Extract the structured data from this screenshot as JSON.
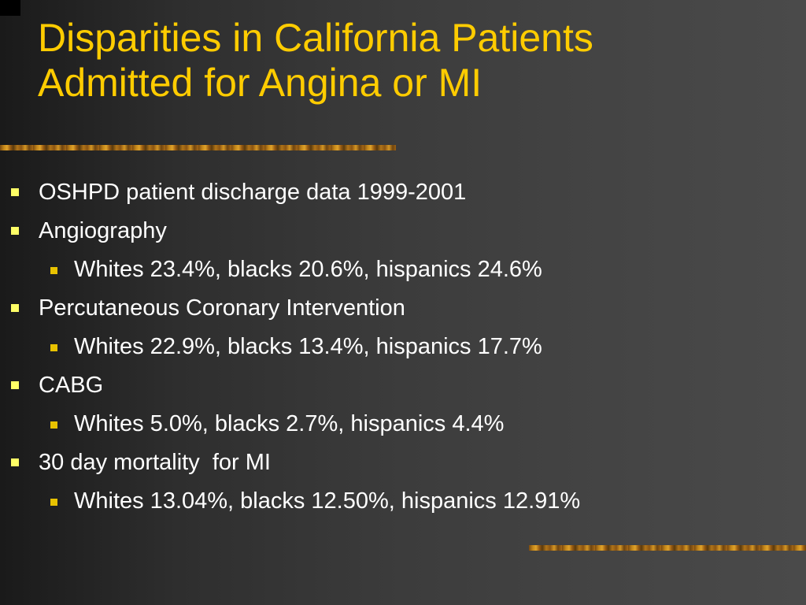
{
  "slide": {
    "title_lines": [
      "Disparities in California Patients",
      "Admitted for Angina or MI"
    ],
    "bullets": [
      {
        "level": 1,
        "text": "OSHPD patient discharge data 1999-2001"
      },
      {
        "level": 1,
        "text": "Angiography"
      },
      {
        "level": 2,
        "text": "Whites 23.4%, blacks 20.6%, hispanics 24.6%"
      },
      {
        "level": 1,
        "text": "Percutaneous Coronary Intervention"
      },
      {
        "level": 2,
        "text": "Whites 22.9%, blacks 13.4%, hispanics 17.7%"
      },
      {
        "level": 1,
        "text": "CABG"
      },
      {
        "level": 2,
        "text": "Whites 5.0%, blacks 2.7%, hispanics 4.4%"
      },
      {
        "level": 1,
        "text": "30 day mortality  for MI"
      },
      {
        "level": 2,
        "text": "Whites 13.04%, blacks 12.50%, hispanics 12.91%"
      }
    ]
  },
  "colors": {
    "title": "#ffcc00",
    "body_text": "#ffffff",
    "level1_bullet": "#ffff66",
    "level2_bullet": "#e8c200",
    "background": "#3c3c3c"
  }
}
